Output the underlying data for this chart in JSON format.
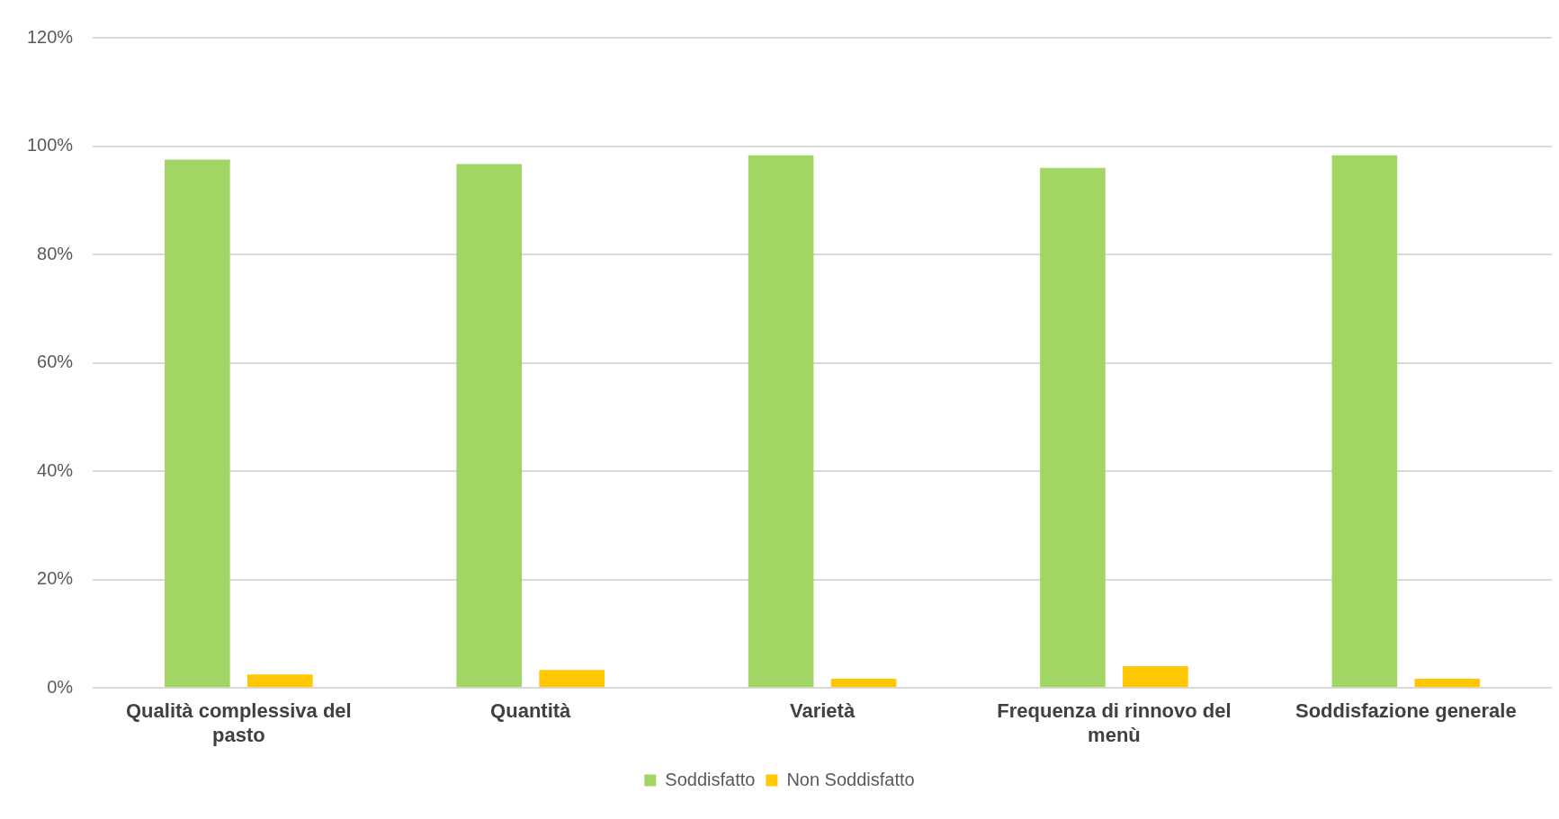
{
  "chart_data": {
    "type": "bar",
    "categories": [
      "Qualità complessiva del pasto",
      "Quantità",
      "Varietà",
      "Frequenza di rinnovo del menù",
      "Soddisfazione generale"
    ],
    "series": [
      {
        "name": "Soddisfatto",
        "color": "#a2d664",
        "values": [
          97.5,
          96.7,
          98.3,
          96,
          98.3
        ]
      },
      {
        "name": "Non Soddisfatto",
        "color": "#ffc800",
        "values": [
          2.5,
          3.3,
          1.7,
          4,
          1.7
        ]
      }
    ],
    "ylim": [
      0,
      120
    ],
    "yticks": [
      {
        "value": 0,
        "label": "0%"
      },
      {
        "value": 20,
        "label": "20%"
      },
      {
        "value": 40,
        "label": "40%"
      },
      {
        "value": 60,
        "label": "60%"
      },
      {
        "value": 80,
        "label": "80%"
      },
      {
        "value": 100,
        "label": "100%"
      },
      {
        "value": 120,
        "label": "120%"
      }
    ],
    "grid": "y",
    "legend": "bottom"
  }
}
